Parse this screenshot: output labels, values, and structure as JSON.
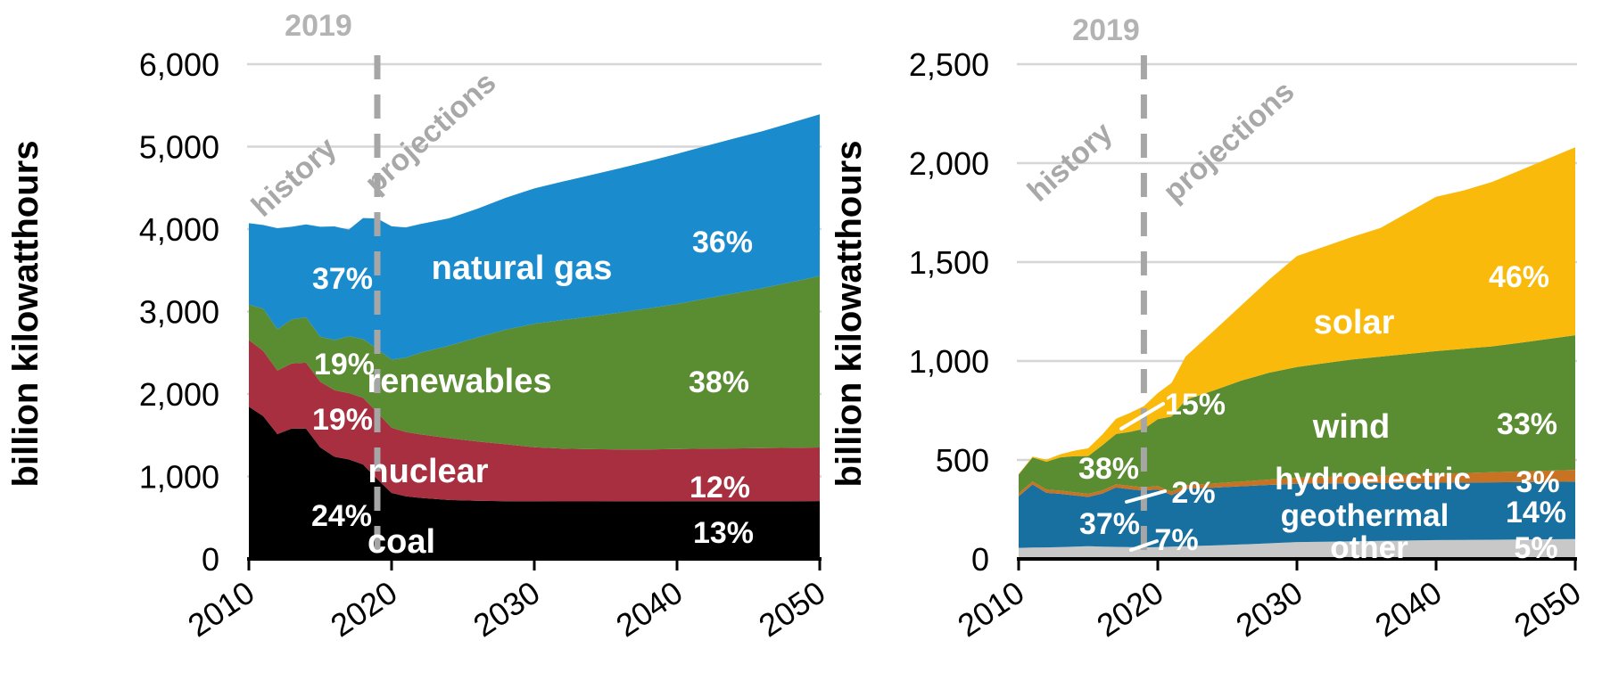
{
  "colors": {
    "natural_gas": "#1a8ccd",
    "renewables": "#5a8c32",
    "nuclear": "#a72f3f",
    "coal": "#000000",
    "solar": "#f9ba0c",
    "wind": "#5a8c32",
    "hydroelectric": "#17709f",
    "geothermal": "#c87323",
    "other": "#c8c8c8",
    "divider": "#a6a6a6",
    "divider_label": "#b3b3b3",
    "era_label": "#a8a8a8",
    "gridline": "#d6d6d6",
    "axis": "#000000",
    "annotation_text": "#ffffff"
  },
  "chart_data": [
    {
      "type": "area",
      "stacked": true,
      "ylabel": "billion kilowatthours",
      "ylim": [
        0,
        6000
      ],
      "xlim": [
        2010,
        2050
      ],
      "grid": "horizontal",
      "legend_position": "in-plot-labels",
      "ytick_labels": [
        "0",
        "1,000",
        "2,000",
        "3,000",
        "4,000",
        "5,000",
        "6,000"
      ],
      "xtick_labels": [
        "2010",
        "2020",
        "2030",
        "2040",
        "2050"
      ],
      "divider": {
        "year": 2019,
        "label": "2019"
      },
      "era": {
        "history": "history",
        "projections": "projections"
      },
      "x": [
        2010,
        2011,
        2012,
        2013,
        2014,
        2015,
        2016,
        2017,
        2018,
        2019,
        2020,
        2021,
        2022,
        2024,
        2026,
        2028,
        2030,
        2032,
        2034,
        2036,
        2038,
        2040,
        2042,
        2044,
        2046,
        2048,
        2050
      ],
      "series": [
        {
          "name": "coal",
          "label": "coal",
          "color_key": "coal",
          "pct_2019": "24%",
          "pct_2050": "13%",
          "values": [
            1847,
            1733,
            1514,
            1581,
            1582,
            1352,
            1239,
            1206,
            1146,
            966,
            800,
            760,
            740,
            715,
            705,
            700,
            698,
            697,
            697,
            698,
            698,
            699,
            700,
            700,
            700,
            701,
            702
          ]
        },
        {
          "name": "nuclear",
          "label": "nuclear",
          "color_key": "nuclear",
          "pct_2019": "19%",
          "pct_2050": "12%",
          "values": [
            807,
            790,
            769,
            789,
            797,
            797,
            806,
            805,
            807,
            809,
            790,
            780,
            770,
            750,
            720,
            690,
            655,
            640,
            634,
            630,
            630,
            633,
            637,
            640,
            643,
            646,
            649
          ]
        },
        {
          "name": "renewables",
          "label": "renewables",
          "color_key": "renewables",
          "pct_2019": "19%",
          "pct_2050": "38%",
          "values": [
            429,
            513,
            502,
            534,
            551,
            546,
            609,
            687,
            713,
            772,
            826,
            900,
            990,
            1120,
            1260,
            1390,
            1500,
            1560,
            1610,
            1660,
            1710,
            1760,
            1820,
            1880,
            1940,
            2010,
            2080
          ]
        },
        {
          "name": "natural gas",
          "label": "natural gas",
          "color_key": "natural_gas",
          "pct_2019": "37%",
          "pct_2050": "36%",
          "values": [
            988,
            1014,
            1226,
            1124,
            1127,
            1333,
            1378,
            1296,
            1468,
            1582,
            1617,
            1580,
            1560,
            1545,
            1560,
            1600,
            1640,
            1680,
            1715,
            1750,
            1785,
            1820,
            1850,
            1878,
            1905,
            1933,
            1960
          ]
        }
      ]
    },
    {
      "type": "area",
      "stacked": true,
      "ylabel": "billion kilowatthours",
      "ylim": [
        0,
        2500
      ],
      "xlim": [
        2010,
        2050
      ],
      "grid": "horizontal",
      "legend_position": "in-plot-labels",
      "ytick_labels": [
        "0",
        "500",
        "1,000",
        "1,500",
        "2,000",
        "2,500"
      ],
      "xtick_labels": [
        "2010",
        "2020",
        "2030",
        "2040",
        "2050"
      ],
      "divider": {
        "year": 2019,
        "label": "2019"
      },
      "era": {
        "history": "history",
        "projections": "projections"
      },
      "x": [
        2010,
        2011,
        2012,
        2013,
        2014,
        2015,
        2016,
        2017,
        2018,
        2019,
        2020,
        2021,
        2022,
        2024,
        2026,
        2028,
        2030,
        2032,
        2034,
        2036,
        2038,
        2040,
        2042,
        2044,
        2046,
        2048,
        2050
      ],
      "series": [
        {
          "name": "other",
          "label": "other",
          "color_key": "other",
          "pct_2019": "7%",
          "pct_2050": "5%",
          "values": [
            56,
            57,
            58,
            60,
            62,
            64,
            62,
            61,
            60,
            58,
            60,
            62,
            64,
            68,
            73,
            79,
            85,
            87,
            89,
            91,
            93,
            95,
            96,
            97,
            98,
            99,
            100
          ]
        },
        {
          "name": "hydroelectric",
          "label": "hydroelectric",
          "color_key": "hydroelectric",
          "pct_2019": "37%",
          "pct_2050": "14%",
          "values": [
            260,
            319,
            276,
            269,
            259,
            249,
            268,
            300,
            292,
            288,
            291,
            260,
            290,
            292,
            294,
            295,
            295,
            294,
            293,
            292,
            291,
            290,
            290,
            290,
            290,
            290,
            290
          ]
        },
        {
          "name": "geothermal",
          "label": "geothermal",
          "color_key": "geothermal",
          "pct_2019": "2%",
          "pct_2050": "3%",
          "values": [
            15,
            16,
            16,
            16,
            16,
            16,
            16,
            16,
            17,
            16,
            17,
            18,
            19,
            21,
            24,
            27,
            30,
            33,
            36,
            39,
            42,
            45,
            48,
            51,
            54,
            57,
            60
          ]
        },
        {
          "name": "wind",
          "label": "wind",
          "color_key": "wind",
          "pct_2019": "38%",
          "pct_2050": "33%",
          "values": [
            95,
            120,
            141,
            168,
            182,
            191,
            227,
            254,
            273,
            295,
            338,
            380,
            430,
            470,
            510,
            540,
            560,
            575,
            590,
            600,
            610,
            620,
            628,
            636,
            650,
            665,
            680
          ]
        },
        {
          "name": "solar",
          "label": "solar",
          "color_key": "solar",
          "pct_2019": "15%",
          "pct_2050": "46%",
          "values": [
            3,
            5,
            11,
            16,
            28,
            39,
            54,
            77,
            96,
            115,
            132,
            170,
            220,
            300,
            380,
            470,
            560,
            590,
            620,
            650,
            715,
            780,
            800,
            830,
            870,
            910,
            950
          ]
        }
      ]
    }
  ]
}
